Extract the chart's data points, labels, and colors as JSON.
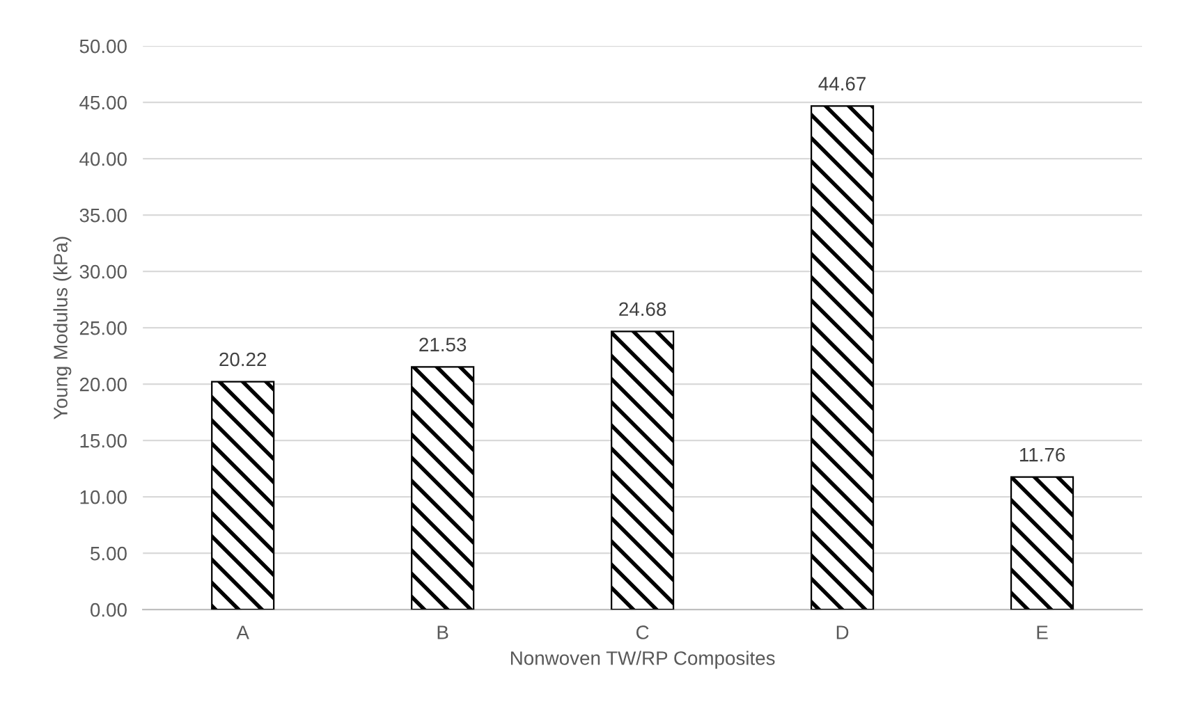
{
  "chart_data": {
    "type": "bar",
    "xlabel": "Nonwoven TW/RP Composites",
    "ylabel": "Young Modulus (kPa)",
    "categories": [
      "A",
      "B",
      "C",
      "D",
      "E"
    ],
    "values": [
      20.22,
      21.53,
      24.68,
      44.67,
      11.76
    ],
    "color": "#000000",
    "ylim": [
      0,
      50
    ],
    "yticks": [
      {
        "value": 0,
        "label": "0.00"
      },
      {
        "value": 5,
        "label": "5.00"
      },
      {
        "value": 10,
        "label": "10.00"
      },
      {
        "value": 15,
        "label": "15.00"
      },
      {
        "value": 20,
        "label": "20.00"
      },
      {
        "value": 25,
        "label": "25.00"
      },
      {
        "value": 30,
        "label": "30.00"
      },
      {
        "value": 35,
        "label": "35.00"
      },
      {
        "value": 40,
        "label": "40.00"
      },
      {
        "value": 45,
        "label": "45.00"
      },
      {
        "value": 50,
        "label": "50.00"
      }
    ],
    "grid": "y",
    "data_labels": true,
    "legend": false
  }
}
